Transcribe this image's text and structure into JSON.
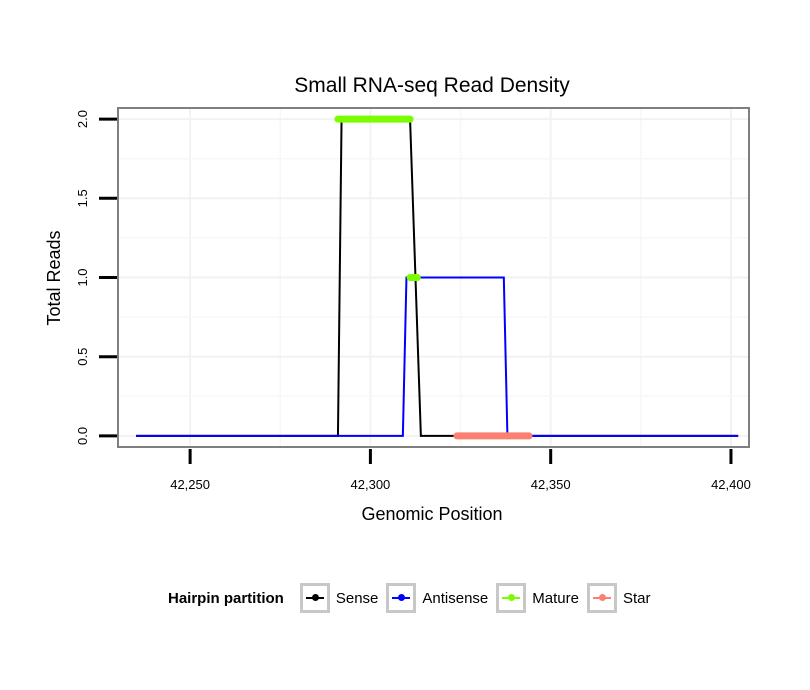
{
  "chart_data": {
    "type": "line",
    "title": "Small RNA-seq Read Density",
    "xlabel": "Genomic Position",
    "ylabel": "Total Reads",
    "xlim": [
      42230,
      42405
    ],
    "ylim": [
      -0.07,
      2.07
    ],
    "x_ticks": [
      42250,
      42300,
      42350,
      42400
    ],
    "x_tick_labels": [
      "42,250",
      "42,300",
      "42,350",
      "42,400"
    ],
    "y_ticks": [
      0.0,
      0.5,
      1.0,
      1.5,
      2.0
    ],
    "y_tick_labels": [
      "0.0",
      "0.5",
      "1.0",
      "1.5",
      "2.0"
    ],
    "grid": true,
    "series": [
      {
        "name": "Sense",
        "color": "#000000",
        "x": [
          42235,
          42291,
          42292,
          42311,
          42314,
          42402
        ],
        "y": [
          0,
          0,
          2,
          2,
          0,
          0
        ]
      },
      {
        "name": "Antisense",
        "color": "#0000ff",
        "x": [
          42235,
          42309,
          42310,
          42337,
          42338,
          42402
        ],
        "y": [
          0,
          0,
          1,
          1,
          0,
          0
        ]
      },
      {
        "name": "Mature",
        "color": "#7cfc00",
        "segments": [
          {
            "x": [
              42291,
              42311
            ],
            "y": [
              2,
              2
            ]
          },
          {
            "x": [
              42311,
              42313
            ],
            "y": [
              1,
              1
            ]
          }
        ]
      },
      {
        "name": "Star",
        "color": "#fa8072",
        "segments": [
          {
            "x": [
              42324,
              42344
            ],
            "y": [
              0,
              0
            ]
          }
        ]
      }
    ],
    "legend": {
      "title": "Hairpin partition",
      "position": "bottom",
      "entries": [
        "Sense",
        "Antisense",
        "Mature",
        "Star"
      ]
    }
  }
}
